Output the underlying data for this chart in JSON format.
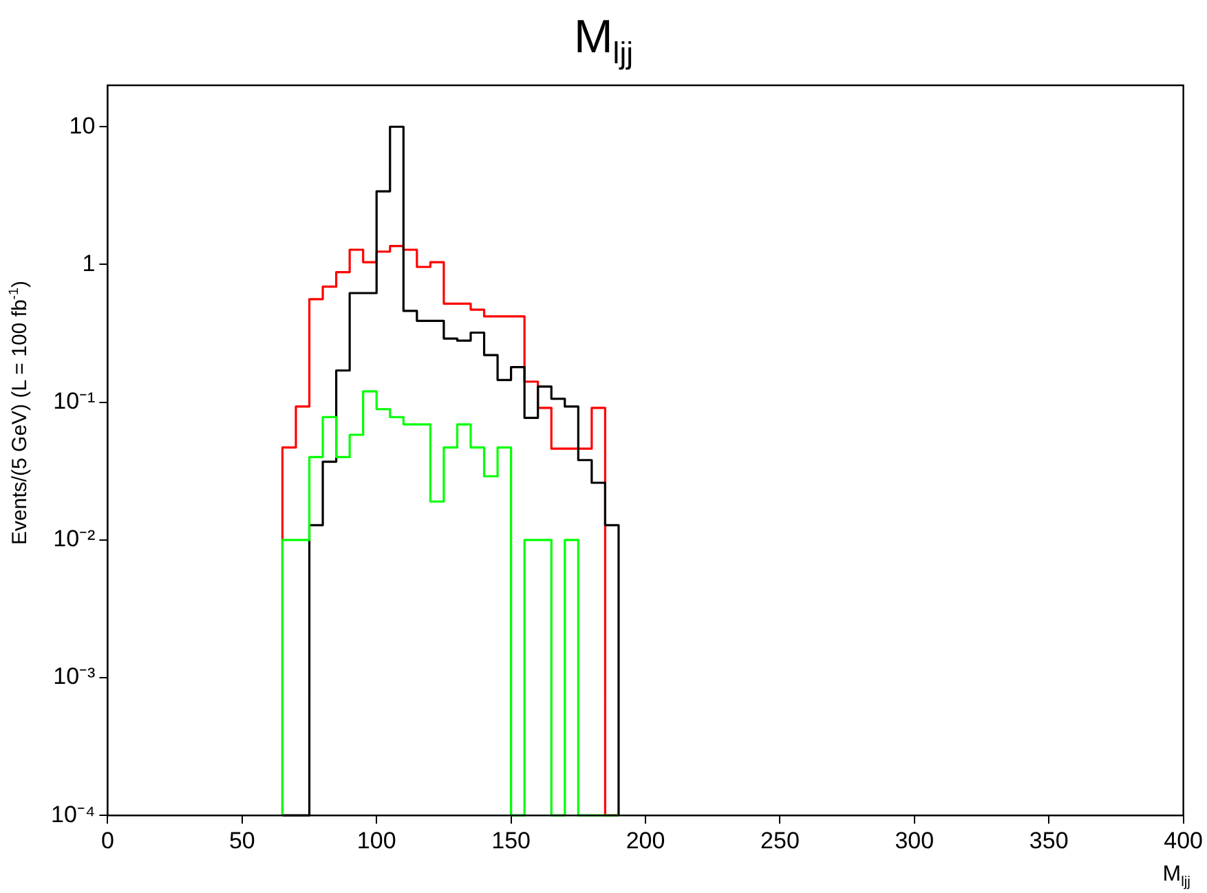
{
  "chart_data": {
    "type": "histogram",
    "title": "M$_{ljj}$",
    "xlabel": "M$_{ljj}$",
    "ylabel": "Events/(5 GeV) (L = 100 fb$^{-1}$)",
    "bins": [
      65,
      70,
      75,
      80,
      85,
      90,
      95,
      100,
      105,
      110,
      115,
      120,
      125,
      130,
      135,
      140,
      145,
      150,
      155,
      160,
      165,
      170,
      175,
      180,
      185,
      190
    ],
    "series": [
      {
        "color": "#ff0000",
        "values": [
          0.047,
          0.093,
          0.56,
          0.69,
          0.88,
          1.28,
          1.04,
          1.24,
          1.36,
          1.28,
          0.96,
          1.04,
          0.52,
          0.52,
          0.47,
          0.42,
          0.42,
          0.42,
          0.141,
          0.091,
          0.046,
          0.046,
          0.046,
          0.091,
          null
        ]
      },
      {
        "color": "#000000",
        "values": [
          null,
          null,
          0.0128,
          0.037,
          0.17,
          0.62,
          0.62,
          3.4,
          10,
          0.46,
          0.39,
          0.39,
          0.29,
          0.28,
          0.32,
          0.22,
          0.145,
          0.18,
          0.077,
          0.13,
          0.106,
          0.093,
          0.038,
          0.026,
          0.0128
        ]
      },
      {
        "color": "#00ff00",
        "values": [
          0.01,
          0.01,
          0.04,
          0.078,
          0.04,
          0.058,
          0.12,
          0.089,
          0.078,
          0.069,
          0.069,
          0.019,
          0.047,
          0.069,
          0.047,
          0.029,
          0.047,
          null,
          0.01,
          0.01,
          null,
          0.01,
          null,
          null,
          null
        ]
      }
    ],
    "xlim": [
      0,
      400
    ],
    "xticks": [
      0,
      50,
      100,
      150,
      200,
      250,
      300,
      350,
      400
    ],
    "log": true,
    "ylim": [
      0.0001,
      20
    ],
    "yticks": [
      {
        "value": 0.0001,
        "label": "10⁻⁴"
      },
      {
        "value": 0.001,
        "label": "10⁻³"
      },
      {
        "value": 0.01,
        "label": "10⁻²"
      },
      {
        "value": 0.1,
        "label": "10⁻¹"
      },
      1,
      10
    ],
    "grid": false,
    "legend": false
  }
}
